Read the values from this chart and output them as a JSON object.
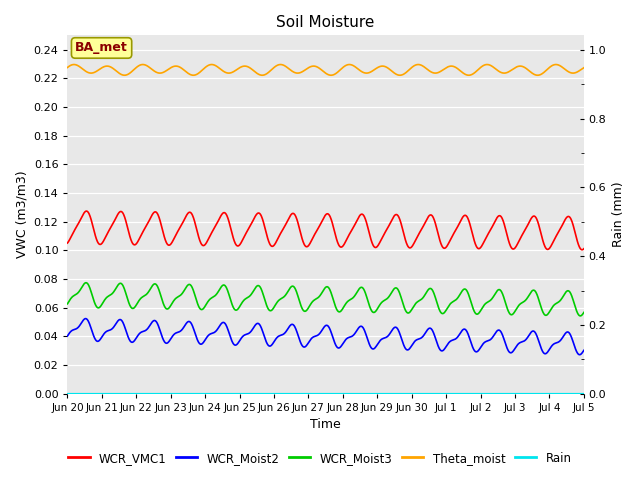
{
  "title": "Soil Moisture",
  "xlabel": "Time",
  "ylabel_left": "VWC (m3/m3)",
  "ylabel_right": "Rain (mm)",
  "annotation": "BA_met",
  "ylim_left": [
    0.0,
    0.25
  ],
  "ylim_right": [
    0.0,
    1.0417
  ],
  "bg_color": "#e8e8e8",
  "bg_color2": "#d8d8d8",
  "colors": {
    "WCR_VMC1": "#ff0000",
    "WCR_Moist2": "#0000ff",
    "WCR_Moist3": "#00cc00",
    "Theta_moist": "#ffa500",
    "Rain": "#00e5ee"
  },
  "x_tick_labels": [
    "Jun 20",
    "Jun 21",
    "Jun 22",
    "Jun 23",
    "Jun 24",
    "Jun 25",
    "Jun 26",
    "Jun 27",
    "Jun 28",
    "Jun 29",
    "Jun 30",
    "Jul 1",
    "Jul 2",
    "Jul 3",
    "Jul 4",
    "Jul 5"
  ],
  "x_tick_positions": [
    0,
    1,
    2,
    3,
    4,
    5,
    6,
    7,
    8,
    9,
    10,
    11,
    12,
    13,
    14,
    15
  ],
  "yticks_left": [
    0.0,
    0.02,
    0.04,
    0.06,
    0.08,
    0.1,
    0.12,
    0.14,
    0.16,
    0.18,
    0.2,
    0.22,
    0.24
  ],
  "yticks_right": [
    0.0,
    0.2,
    0.4,
    0.6,
    0.8,
    1.0
  ],
  "num_points": 1500
}
